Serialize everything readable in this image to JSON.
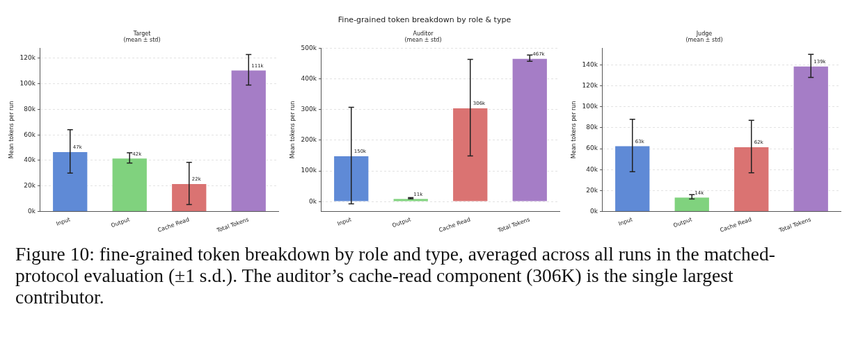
{
  "chart_data": [
    {
      "type": "bar",
      "title": "Target",
      "subtitle": "(mean ± std)",
      "ylabel": "Mean tokens per run",
      "categories": [
        "Input",
        "Output",
        "Cache Read",
        "Total Tokens"
      ],
      "values": [
        47000,
        42000,
        22000,
        111000
      ],
      "errors": [
        17000,
        4000,
        16500,
        12000
      ],
      "value_labels": [
        "47k",
        "42k",
        "22k",
        "111k"
      ],
      "colors": [
        "#5f8ad6",
        "#80d27e",
        "#da7372",
        "#a57dc6"
      ],
      "ylim": [
        0,
        128000
      ],
      "yticks": [
        {
          "value": 0,
          "label": "0k"
        },
        {
          "value": 20000,
          "label": "20k"
        },
        {
          "value": 40000,
          "label": "40k"
        },
        {
          "value": 60000,
          "label": "60k"
        },
        {
          "value": 80000,
          "label": "80k"
        },
        {
          "value": 100000,
          "label": "100k"
        },
        {
          "value": 120000,
          "label": "120k"
        }
      ],
      "grid": "y",
      "legend": false,
      "annotations": [
        "Fine-grained token breakdown by role & type",
        "Figure 10: fine-grained token breakdown by role and type, averaged across all runs in the matched-protocol evaluation (±1 s.d.). The auditor’s cache-read component (306K) is the single largest contributor."
      ]
    },
    {
      "type": "bar",
      "title": "Auditor",
      "subtitle": "(mean ± std)",
      "ylabel": "Mean tokens per run",
      "categories": [
        "Input",
        "Output",
        "Cache Read",
        "Total Tokens"
      ],
      "values": [
        150000,
        11000,
        306000,
        467000
      ],
      "errors": [
        157000,
        2000,
        157000,
        10000
      ],
      "value_labels": [
        "150k",
        "11k",
        "306k",
        "467k"
      ],
      "colors": [
        "#5f8ad6",
        "#80d27e",
        "#da7372",
        "#a57dc6"
      ],
      "ylim": [
        -32000,
        500000
      ],
      "yticks": [
        {
          "value": 0,
          "label": "0k"
        },
        {
          "value": 100000,
          "label": "100k"
        },
        {
          "value": 200000,
          "label": "200k"
        },
        {
          "value": 300000,
          "label": "300k"
        },
        {
          "value": 400000,
          "label": "400k"
        },
        {
          "value": 500000,
          "label": "500k"
        }
      ],
      "grid": "y",
      "legend": false
    },
    {
      "type": "bar",
      "title": "Judge",
      "subtitle": "(mean ± std)",
      "ylabel": "Mean tokens per run",
      "categories": [
        "Input",
        "Output",
        "Cache Read",
        "Total Tokens"
      ],
      "values": [
        63000,
        14000,
        62000,
        139000
      ],
      "errors": [
        25000,
        2000,
        25000,
        11000
      ],
      "value_labels": [
        "63k",
        "14k",
        "62k",
        "139k"
      ],
      "colors": [
        "#5f8ad6",
        "#80d27e",
        "#da7372",
        "#a57dc6"
      ],
      "ylim": [
        0,
        156000
      ],
      "yticks": [
        {
          "value": 0,
          "label": "0k"
        },
        {
          "value": 20000,
          "label": "20k"
        },
        {
          "value": 40000,
          "label": "40k"
        },
        {
          "value": 60000,
          "label": "60k"
        },
        {
          "value": 80000,
          "label": "80k"
        },
        {
          "value": 100000,
          "label": "100k"
        },
        {
          "value": 120000,
          "label": "120k"
        },
        {
          "value": 140000,
          "label": "140k"
        }
      ],
      "grid": "y",
      "legend": false
    }
  ]
}
